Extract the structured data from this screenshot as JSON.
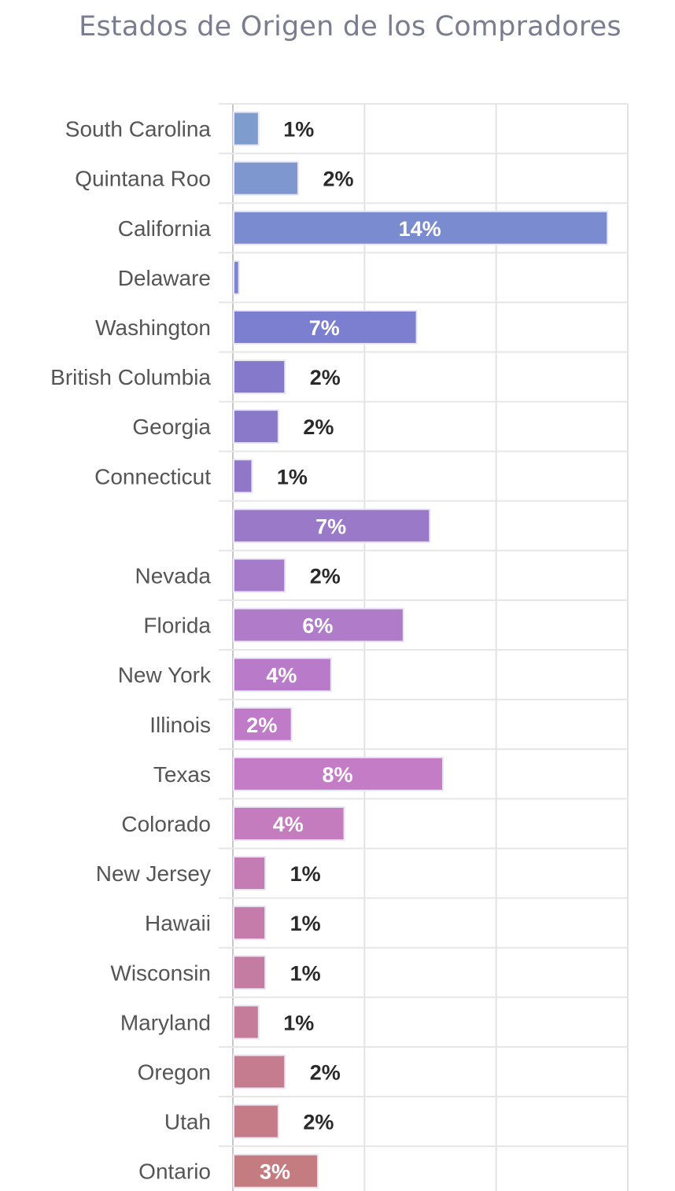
{
  "chart_data": {
    "type": "bar",
    "orientation": "horizontal",
    "title": "Estados de Origen de los Compradores",
    "xlabel": "",
    "ylabel": "",
    "grid": true,
    "xlim": [
      0,
      15
    ],
    "categories": [
      "South Carolina",
      "Quintana Roo",
      "California",
      "Delaware",
      "Washington",
      "British Columbia",
      "Georgia",
      "Connecticut",
      "",
      "Nevada",
      "Florida",
      "New York",
      "Illinois",
      "Texas",
      "Colorado",
      "New Jersey",
      "Hawaii",
      "Wisconsin",
      "Maryland",
      "Oregon",
      "Utah",
      "Ontario"
    ],
    "values": [
      0.95,
      2.45,
      14.2,
      0.2,
      6.95,
      1.95,
      1.7,
      0.7,
      7.45,
      1.95,
      6.45,
      3.7,
      2.2,
      7.95,
      4.2,
      1.2,
      1.2,
      1.2,
      0.95,
      1.95,
      1.7,
      3.2
    ],
    "data_labels": [
      "1%",
      "2%",
      "14%",
      "",
      "7%",
      "2%",
      "2%",
      "1%",
      "7%",
      "2%",
      "6%",
      "4%",
      "2%",
      "8%",
      "4%",
      "1%",
      "1%",
      "1%",
      "1%",
      "2%",
      "2%",
      "3%"
    ],
    "label_inside": [
      false,
      false,
      true,
      false,
      true,
      false,
      false,
      false,
      true,
      false,
      true,
      true,
      true,
      true,
      true,
      false,
      false,
      false,
      false,
      false,
      false,
      true
    ],
    "colors": [
      "#7f9ccf",
      "#7e98cf",
      "#7b8bcf",
      "#7c85cf",
      "#7c7ecf",
      "#8579cb",
      "#8a78c9",
      "#9077c7",
      "#9a79c8",
      "#a67bc9",
      "#b07bc9",
      "#b97bc9",
      "#bf7bc8",
      "#c47cc6",
      "#c57cbe",
      "#c57cb4",
      "#c57caa",
      "#c57ca2",
      "#c57c98",
      "#c57c8e",
      "#c57c86",
      "#c57c80"
    ]
  }
}
